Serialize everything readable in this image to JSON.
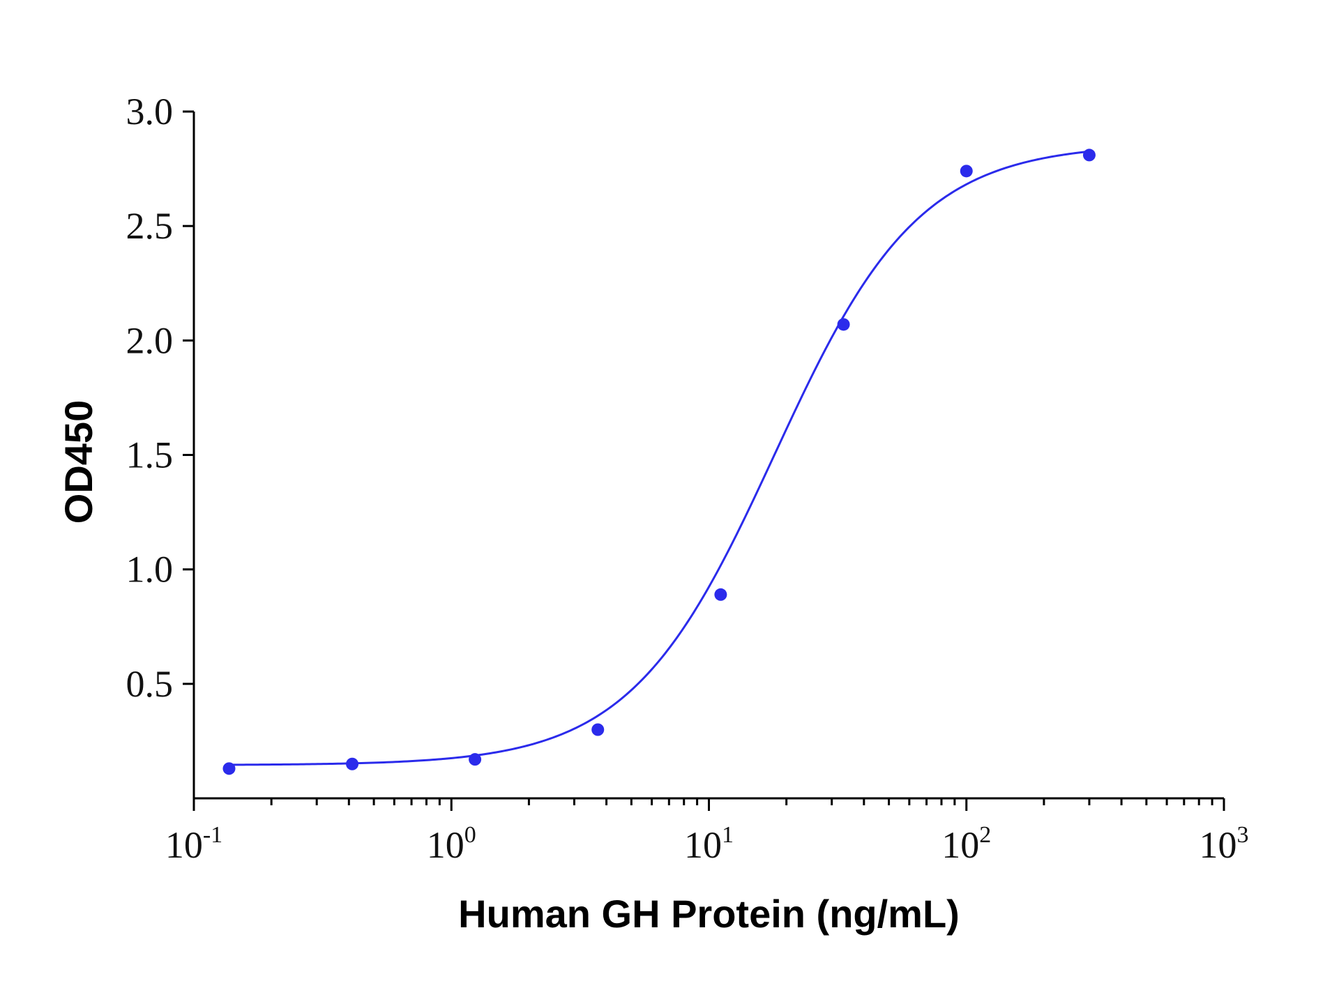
{
  "chart_data": {
    "type": "scatter",
    "title": "",
    "xlabel": "Human GH Protein (ng/mL)",
    "ylabel": "OD450",
    "xscale": "log",
    "xlim": [
      0.1,
      1000
    ],
    "ylim": [
      0,
      3.0
    ],
    "yticks": [
      "0.5",
      "1.0",
      "1.5",
      "2.0",
      "2.5",
      "3.0"
    ],
    "xticks": [
      {
        "base": "10",
        "exp": "-1"
      },
      {
        "base": "10",
        "exp": "0"
      },
      {
        "base": "10",
        "exp": "1"
      },
      {
        "base": "10",
        "exp": "2"
      },
      {
        "base": "10",
        "exp": "3"
      }
    ],
    "series": [
      {
        "x": [
          0.137,
          0.412,
          1.235,
          3.704,
          11.11,
          33.33,
          100,
          300
        ],
        "y": [
          0.13,
          0.15,
          0.17,
          0.3,
          0.89,
          2.07,
          2.74,
          2.81
        ],
        "color": "#2B2BEB",
        "fit_curve": "four-parameter logistic"
      }
    ],
    "fit": {
      "bottom": 0.145,
      "top": 2.86,
      "ec50": 18.0,
      "hill": 1.55
    },
    "grid": false,
    "legend": "none"
  }
}
